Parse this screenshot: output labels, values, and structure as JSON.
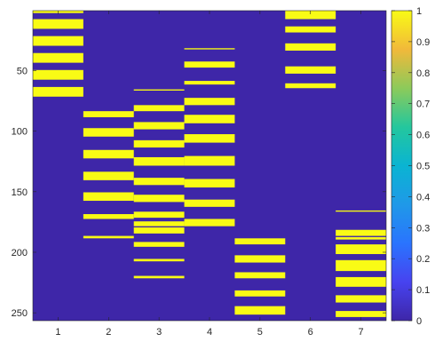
{
  "chart_data": {
    "type": "heatmap",
    "title": "",
    "xlabel": "",
    "ylabel": "",
    "colormap": "parula",
    "low_color": "#3e26a8",
    "high_color": "#f9fb15",
    "grid": false,
    "x": [
      1,
      2,
      3,
      4,
      5,
      6,
      7
    ],
    "xlim": [
      0.5,
      7.5
    ],
    "ylim": [
      0.5,
      256.5
    ],
    "y_reversed": true,
    "x_ticks": [
      1,
      2,
      3,
      4,
      5,
      6,
      7
    ],
    "x_tick_labels": [
      "1",
      "2",
      "3",
      "4",
      "5",
      "6",
      "7"
    ],
    "y_ticks": [
      50,
      100,
      150,
      200,
      250
    ],
    "y_tick_labels": [
      "50",
      "100",
      "150",
      "200",
      "250"
    ],
    "colorbar": {
      "location": "right",
      "clim": [
        0,
        1
      ],
      "ticks": [
        0,
        0.1,
        0.2,
        0.3,
        0.4,
        0.5,
        0.6,
        0.7,
        0.8,
        0.9,
        1
      ],
      "tick_labels": [
        "0",
        "0.1",
        "0.2",
        "0.3",
        "0.4",
        "0.5",
        "0.6",
        "0.7",
        "0.8",
        "0.9",
        "1"
      ]
    },
    "columns": [
      {
        "x": 1,
        "value_one_rows": [
          [
            1,
            2
          ],
          [
            8,
            15
          ],
          [
            22,
            29
          ],
          [
            36,
            43
          ],
          [
            50,
            57
          ],
          [
            64,
            71
          ]
        ]
      },
      {
        "x": 2,
        "value_one_rows": [
          [
            84,
            88
          ],
          [
            98,
            104
          ],
          [
            116,
            122
          ],
          [
            134,
            140
          ],
          [
            151,
            157
          ],
          [
            169,
            172
          ],
          [
            187,
            188
          ]
        ]
      },
      {
        "x": 3,
        "value_one_rows": [
          [
            66,
            66
          ],
          [
            79,
            83
          ],
          [
            93,
            98
          ],
          [
            108,
            113
          ],
          [
            122,
            128
          ],
          [
            139,
            144
          ],
          [
            153,
            158
          ],
          [
            167,
            171
          ],
          [
            175,
            178
          ],
          [
            180,
            184
          ],
          [
            192,
            195
          ],
          [
            206,
            207
          ],
          [
            220,
            221
          ]
        ]
      },
      {
        "x": 4,
        "value_one_rows": [
          [
            32,
            32
          ],
          [
            43,
            47
          ],
          [
            59,
            61
          ],
          [
            73,
            78
          ],
          [
            87,
            93
          ],
          [
            103,
            109
          ],
          [
            121,
            128
          ],
          [
            140,
            146
          ],
          [
            157,
            162
          ],
          [
            173,
            178
          ]
        ]
      },
      {
        "x": 5,
        "value_one_rows": [
          [
            189,
            190
          ],
          [
            191,
            193
          ],
          [
            203,
            208
          ],
          [
            217,
            221
          ],
          [
            232,
            236
          ],
          [
            245,
            251
          ]
        ]
      },
      {
        "x": 6,
        "value_one_rows": [
          [
            1,
            7
          ],
          [
            14,
            18
          ],
          [
            28,
            33
          ],
          [
            47,
            52
          ],
          [
            61,
            64
          ]
        ]
      },
      {
        "x": 7,
        "value_one_rows": [
          [
            166,
            166
          ],
          [
            182,
            186
          ],
          [
            188,
            189
          ],
          [
            194,
            201
          ],
          [
            207,
            215
          ],
          [
            221,
            228
          ],
          [
            236,
            241
          ],
          [
            249,
            253
          ]
        ]
      }
    ]
  }
}
